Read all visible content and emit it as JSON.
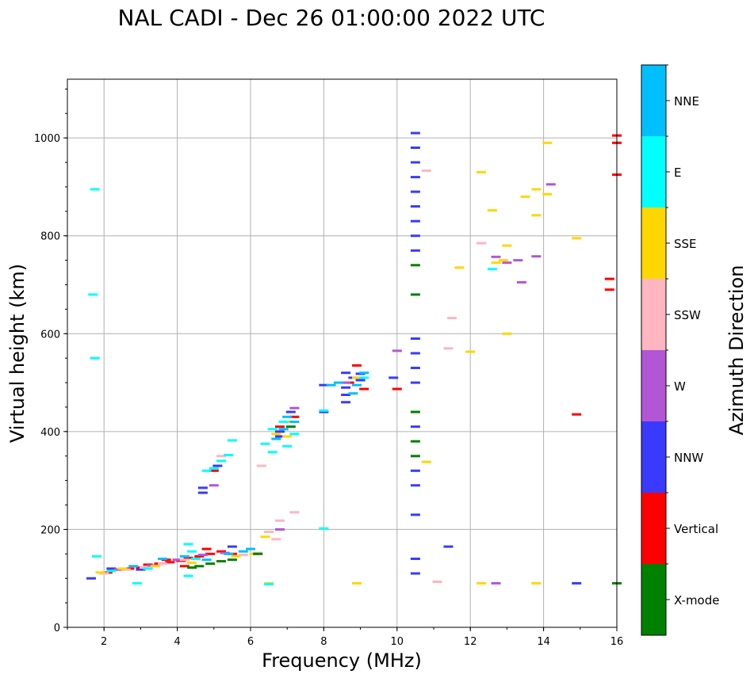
{
  "chart_data": {
    "type": "scatter",
    "title": "NAL CADI - Dec 26 01:00:00 2022 UTC",
    "xlabel": "Frequency (MHz)",
    "ylabel": "Virtual height (km)",
    "xlim": [
      1,
      16
    ],
    "ylim": [
      0,
      1120
    ],
    "xticks": [
      2,
      4,
      6,
      8,
      10,
      12,
      14,
      16
    ],
    "yticks": [
      0,
      200,
      400,
      600,
      800,
      1000
    ],
    "grid": true,
    "colorbar": {
      "label": "Azimuth Direction",
      "entries": [
        {
          "name": "X-mode",
          "color": "#008000"
        },
        {
          "name": "Vertical",
          "color": "#ff0000"
        },
        {
          "name": "NNW",
          "color": "#3a3aff"
        },
        {
          "name": "W",
          "color": "#b356d6"
        },
        {
          "name": "SSW",
          "color": "#ffb6c1"
        },
        {
          "name": "SSE",
          "color": "#ffd700"
        },
        {
          "name": "E",
          "color": "#00ffff"
        },
        {
          "name": "NNE",
          "color": "#00bfff"
        }
      ]
    },
    "series": [
      {
        "name": "NNW",
        "points": [
          [
            10.5,
            1010
          ],
          [
            10.5,
            980
          ],
          [
            10.5,
            950
          ],
          [
            10.5,
            920
          ],
          [
            10.5,
            890
          ],
          [
            10.5,
            860
          ],
          [
            10.5,
            830
          ],
          [
            10.5,
            800
          ],
          [
            10.5,
            770
          ],
          [
            10.5,
            590
          ],
          [
            10.5,
            560
          ],
          [
            10.5,
            530
          ],
          [
            10.5,
            500
          ],
          [
            10.5,
            410
          ],
          [
            10.5,
            320
          ],
          [
            10.5,
            290
          ],
          [
            10.5,
            230
          ],
          [
            10.5,
            140
          ],
          [
            10.5,
            110
          ],
          [
            11.4,
            165
          ],
          [
            14.9,
            90
          ],
          [
            8.6,
            520
          ],
          [
            8.6,
            490
          ],
          [
            8.6,
            475
          ],
          [
            8.6,
            460
          ],
          [
            8.8,
            510
          ],
          [
            8.0,
            495
          ],
          [
            8.0,
            440
          ],
          [
            9.0,
            518
          ],
          [
            9.0,
            505
          ],
          [
            9.9,
            510
          ],
          [
            12.3,
            785
          ],
          [
            4.7,
            285
          ],
          [
            4.7,
            275
          ],
          [
            5.1,
            330
          ],
          [
            6.8,
            400
          ],
          [
            6.8,
            390
          ],
          [
            7.1,
            440
          ],
          [
            2.2,
            120
          ],
          [
            3.0,
            118
          ],
          [
            4.5,
            140
          ],
          [
            5.5,
            165
          ],
          [
            1.65,
            100
          ]
        ]
      },
      {
        "name": "Vertical",
        "points": [
          [
            15.8,
            712
          ],
          [
            15.8,
            690
          ],
          [
            16.0,
            1005
          ],
          [
            16.0,
            990
          ],
          [
            16.0,
            925
          ],
          [
            14.9,
            435
          ],
          [
            10.0,
            487
          ],
          [
            9.1,
            487
          ],
          [
            8.9,
            535
          ],
          [
            8.7,
            500
          ],
          [
            2.1,
            112
          ],
          [
            2.4,
            118
          ],
          [
            2.7,
            120
          ],
          [
            3.0,
            122
          ],
          [
            3.2,
            128
          ],
          [
            3.5,
            130
          ],
          [
            3.8,
            133
          ],
          [
            4.1,
            136
          ],
          [
            4.3,
            142
          ],
          [
            4.6,
            145
          ],
          [
            4.9,
            150
          ],
          [
            5.2,
            155
          ],
          [
            5.5,
            150
          ],
          [
            3.7,
            138
          ],
          [
            4.2,
            125
          ],
          [
            4.8,
            160
          ],
          [
            5.0,
            320
          ],
          [
            6.8,
            410
          ],
          [
            7.2,
            430
          ]
        ]
      },
      {
        "name": "W",
        "points": [
          [
            14.2,
            905
          ],
          [
            13.8,
            758
          ],
          [
            13.3,
            750
          ],
          [
            13.4,
            705
          ],
          [
            12.7,
            757
          ],
          [
            13.0,
            745
          ],
          [
            12.7,
            90
          ],
          [
            10.0,
            565
          ],
          [
            8.6,
            500
          ],
          [
            6.8,
            200
          ],
          [
            7.2,
            448
          ],
          [
            5.0,
            290
          ],
          [
            2.4,
            118
          ],
          [
            3.3,
            126
          ],
          [
            4.0,
            138
          ],
          [
            4.7,
            148
          ],
          [
            5.3,
            152
          ]
        ]
      },
      {
        "name": "SSW",
        "points": [
          [
            10.8,
            933
          ],
          [
            11.5,
            632
          ],
          [
            11.4,
            570
          ],
          [
            11.1,
            93
          ],
          [
            12.3,
            785
          ],
          [
            7.2,
            235
          ],
          [
            6.8,
            218
          ],
          [
            6.5,
            195
          ],
          [
            6.7,
            180
          ],
          [
            6.3,
            330
          ],
          [
            5.2,
            350
          ],
          [
            2.0,
            110
          ],
          [
            2.6,
            118
          ],
          [
            3.1,
            122
          ],
          [
            3.6,
            130
          ],
          [
            4.2,
            138
          ],
          [
            5.8,
            148
          ],
          [
            6.2,
            152
          ]
        ]
      },
      {
        "name": "SSE",
        "points": [
          [
            14.1,
            990
          ],
          [
            14.1,
            885
          ],
          [
            13.8,
            895
          ],
          [
            13.5,
            880
          ],
          [
            13.8,
            842
          ],
          [
            12.6,
            852
          ],
          [
            12.3,
            930
          ],
          [
            13.0,
            780
          ],
          [
            12.9,
            750
          ],
          [
            12.7,
            745
          ],
          [
            13.0,
            600
          ],
          [
            11.7,
            735
          ],
          [
            12.0,
            563
          ],
          [
            10.8,
            338
          ],
          [
            14.9,
            795
          ],
          [
            12.3,
            90
          ],
          [
            13.8,
            90
          ],
          [
            8.9,
            90
          ],
          [
            6.4,
            185
          ],
          [
            6.5,
            90
          ],
          [
            6.7,
            395
          ],
          [
            7.1,
            420
          ],
          [
            7.0,
            390
          ],
          [
            8.9,
            510
          ],
          [
            1.9,
            112
          ],
          [
            2.5,
            120
          ],
          [
            3.4,
            125
          ],
          [
            4.4,
            132
          ],
          [
            5.6,
            145
          ],
          [
            6.1,
            150
          ]
        ]
      },
      {
        "name": "E",
        "points": [
          [
            12.6,
            732
          ],
          [
            8.0,
            443
          ],
          [
            9.1,
            510
          ],
          [
            7.2,
            395
          ],
          [
            7.0,
            370
          ],
          [
            6.9,
            420
          ],
          [
            6.6,
            405
          ],
          [
            6.4,
            375
          ],
          [
            6.6,
            358
          ],
          [
            4.8,
            320
          ],
          [
            5.0,
            325
          ],
          [
            5.2,
            340
          ],
          [
            5.4,
            352
          ],
          [
            5.5,
            382
          ],
          [
            4.3,
            170
          ],
          [
            4.4,
            155
          ],
          [
            4.5,
            140
          ],
          [
            2.2,
            115
          ],
          [
            3.2,
            120
          ],
          [
            1.75,
            895
          ],
          [
            1.7,
            680
          ],
          [
            1.75,
            550
          ],
          [
            1.8,
            145
          ],
          [
            2.9,
            90
          ],
          [
            4.3,
            105
          ],
          [
            8.0,
            202
          ],
          [
            6.5,
            88
          ]
        ]
      },
      {
        "name": "X-mode",
        "points": [
          [
            10.5,
            740
          ],
          [
            10.5,
            680
          ],
          [
            10.5,
            440
          ],
          [
            10.5,
            380
          ],
          [
            10.5,
            350
          ],
          [
            16.0,
            90
          ],
          [
            4.6,
            125
          ],
          [
            4.9,
            130
          ],
          [
            5.2,
            135
          ],
          [
            4.4,
            122
          ],
          [
            5.5,
            138
          ],
          [
            6.2,
            150
          ],
          [
            7.1,
            410
          ]
        ]
      },
      {
        "name": "NNE",
        "points": [
          [
            9.1,
            520
          ],
          [
            8.9,
            495
          ],
          [
            8.8,
            478
          ],
          [
            8.4,
            500
          ],
          [
            8.2,
            495
          ],
          [
            7.2,
            420
          ],
          [
            7.0,
            430
          ],
          [
            6.9,
            405
          ],
          [
            6.7,
            385
          ],
          [
            5.8,
            155
          ],
          [
            6.0,
            160
          ],
          [
            5.4,
            150
          ],
          [
            4.8,
            138
          ],
          [
            4.2,
            145
          ],
          [
            3.6,
            140
          ],
          [
            2.8,
            125
          ]
        ]
      }
    ]
  }
}
